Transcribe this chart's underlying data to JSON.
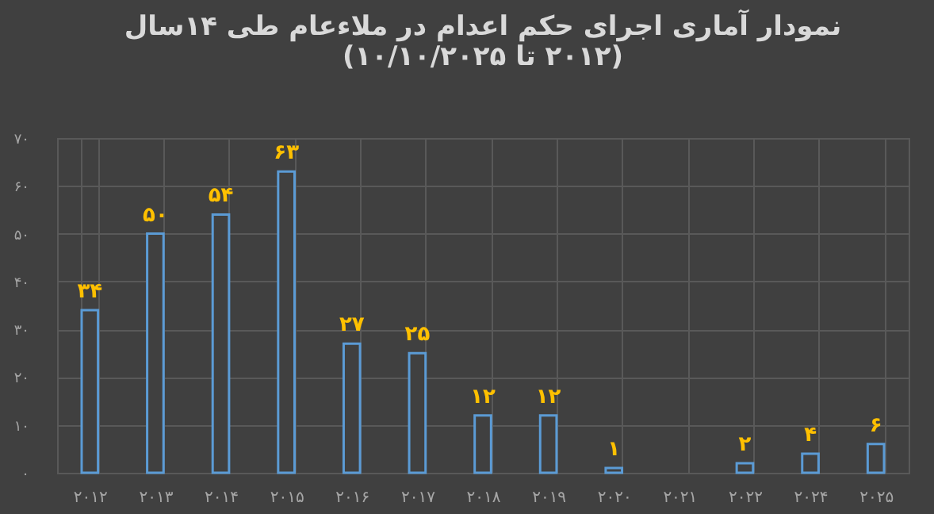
{
  "chart_data": {
    "type": "bar",
    "title": "نمودار آماری اجرای حکم اعدام در ملاءعام طی ۱۴سال",
    "subtitle": "(۲۰۱۲  تا ۱۰/۱۰/۲۰۲۵)",
    "categories": [
      "۲۰۱۲",
      "۲۰۱۳",
      "۲۰۱۴",
      "۲۰۱۵",
      "۲۰۱۶",
      "۲۰۱۷",
      "۲۰۱۸",
      "۲۰۱۹",
      "۲۰۲۰",
      "۲۰۲۱",
      "۲۰۲۲",
      "۲۰۲۴",
      "۲۰۲۵"
    ],
    "values": [
      34,
      50,
      54,
      63,
      27,
      25,
      12,
      12,
      1,
      null,
      2,
      4,
      6
    ],
    "value_labels": [
      "۳۴",
      "۵۰",
      "۵۴",
      "۶۳",
      "۲۷",
      "۲۵",
      "۱۲",
      "۱۲",
      "۱",
      null,
      "۲",
      "۴",
      "۶"
    ],
    "color": "#5b9bd5",
    "ylim": [
      0,
      70
    ],
    "yticks": [
      {
        "value": 0,
        "label": "۰"
      },
      {
        "value": 10,
        "label": "۱۰"
      },
      {
        "value": 20,
        "label": "۲۰"
      },
      {
        "value": 30,
        "label": "۳۰"
      },
      {
        "value": 40,
        "label": "۴۰"
      },
      {
        "value": 50,
        "label": "۵۰"
      },
      {
        "value": 60,
        "label": "۶۰"
      },
      {
        "value": 70,
        "label": "۷۰"
      }
    ],
    "grid": true
  }
}
